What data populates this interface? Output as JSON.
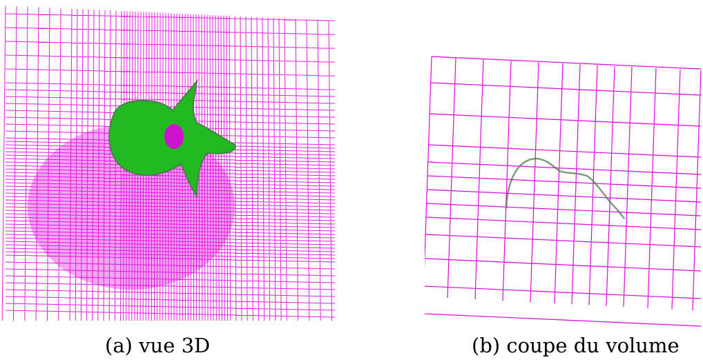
{
  "figure": {
    "panels": [
      {
        "id": "a",
        "caption": "(a) vue 3D"
      },
      {
        "id": "b",
        "caption": "(b) coupe du volume"
      }
    ],
    "colors": {
      "mesh": "#e000e0",
      "bone": "#22b922",
      "bone_dark": "#4f7a4f",
      "background": "#ffffff"
    }
  }
}
